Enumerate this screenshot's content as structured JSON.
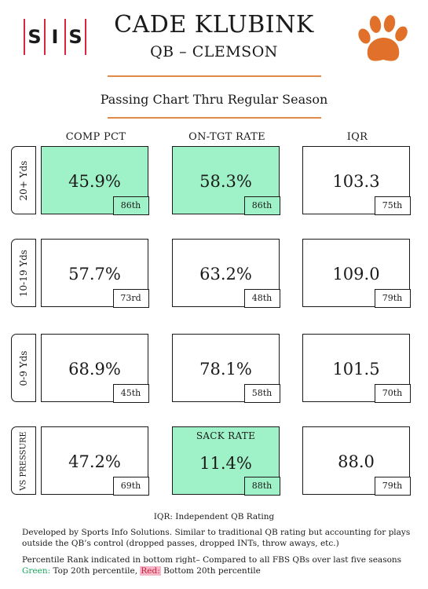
{
  "header": {
    "logo_letters": [
      "S",
      "I",
      "S"
    ],
    "player_name": "CADE KLUBINK",
    "position_team": "QB – CLEMSON",
    "team_logo_icon": "tiger-paw-icon",
    "chart_title": "Passing Chart Thru Regular Season"
  },
  "colors": {
    "accent_orange": "#e0702a",
    "logo_red": "#d7263d",
    "top_green": "#9ff2c7",
    "bottom_red": "#f7b6c8"
  },
  "columns": [
    "COMP PCT",
    "ON-TGT RATE",
    "IQR"
  ],
  "rows": [
    {
      "label": "20+ Yds",
      "cells": [
        {
          "value": "45.9%",
          "rank": "86th",
          "tier": "green"
        },
        {
          "value": "58.3%",
          "rank": "86th",
          "tier": "green"
        },
        {
          "value": "103.3",
          "rank": "75th",
          "tier": "none"
        }
      ]
    },
    {
      "label": "10-19 Yds",
      "cells": [
        {
          "value": "57.7%",
          "rank": "73rd",
          "tier": "none"
        },
        {
          "value": "63.2%",
          "rank": "48th",
          "tier": "none"
        },
        {
          "value": "109.0",
          "rank": "79th",
          "tier": "none"
        }
      ]
    },
    {
      "label": "0-9 Yds",
      "cells": [
        {
          "value": "68.9%",
          "rank": "45th",
          "tier": "none"
        },
        {
          "value": "78.1%",
          "rank": "58th",
          "tier": "none"
        },
        {
          "value": "101.5",
          "rank": "70th",
          "tier": "none"
        }
      ]
    },
    {
      "label": "VS PRESSURE",
      "cells": [
        {
          "value": "47.2%",
          "rank": "69th",
          "tier": "none"
        },
        {
          "label": "SACK RATE",
          "value": "11.4%",
          "rank": "88th",
          "tier": "green"
        },
        {
          "value": "88.0",
          "rank": "79th",
          "tier": "none"
        }
      ]
    }
  ],
  "footer": {
    "iqr_def": "IQR: Independent QB Rating",
    "developed_line1": "Developed by Sports Info Solutions. Similar to traditional QB rating but accounting for plays",
    "developed_line2": "outside the QB’s control (dropped passes, dropped INTs, throw aways, etc.)",
    "percentile_line": "Percentile Rank indicated in bottom right– Compared to all FBS QBs over last five seasons",
    "legend_green_label": "Green:",
    "legend_green_text": " Top 20th percentile, ",
    "legend_red_label": "Red:",
    "legend_red_text": " Bottom 20th percentile"
  }
}
